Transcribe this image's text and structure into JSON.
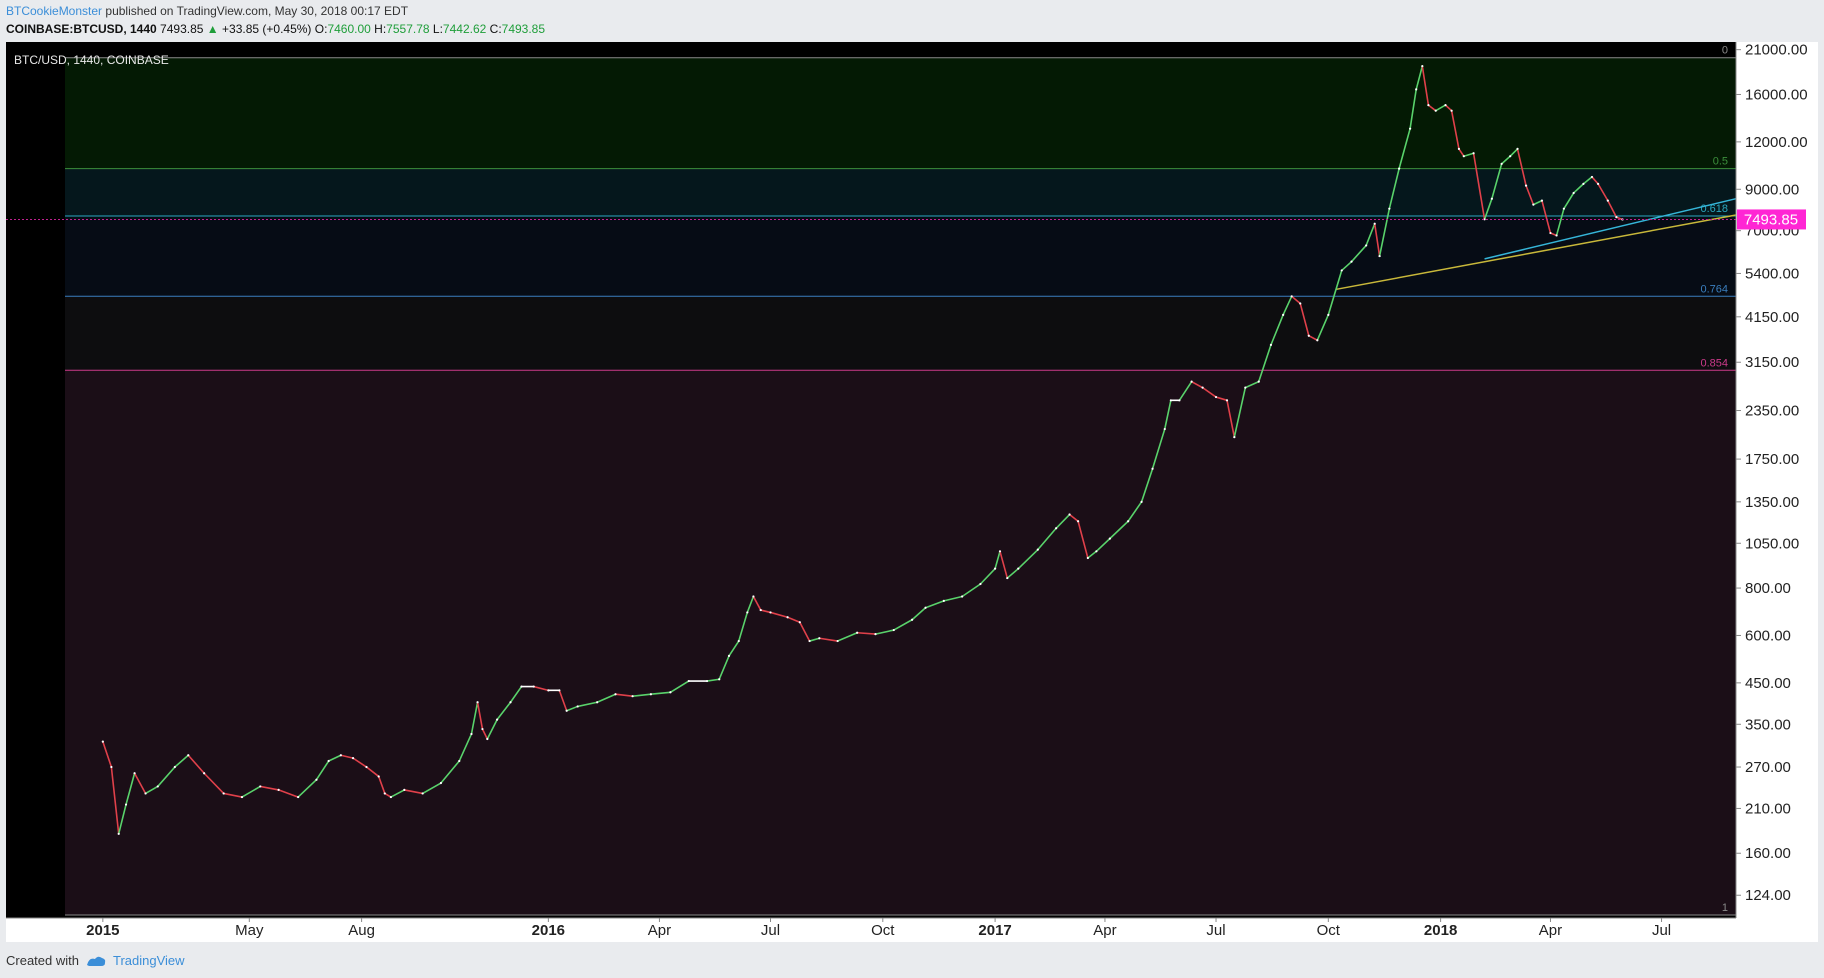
{
  "header": {
    "author": "BTCookieMonster",
    "published": "published on TradingView.com, May 30, 2018 00:17 EDT",
    "symbol": "COINBASE:BTCUSD, 1440",
    "last": "7493.85",
    "change": "+33.85 (+0.45%)",
    "open_label": "O:",
    "open": "7460.00",
    "high_label": "H:",
    "high": "7557.78",
    "low_label": "L:",
    "low": "7442.62",
    "close_label": "C:",
    "close": "7493.85"
  },
  "footer": {
    "created_with": "Created with",
    "brand": "TradingView"
  },
  "colors": {
    "chart_bg": "#000000",
    "up": "#59d26b",
    "down": "#e0404a",
    "neutral": "#ffffff",
    "fib_green": "#3c8f3c",
    "fib_cyan": "#2aa8c0",
    "fib_blue": "#3a7fbf",
    "fib_magenta": "#cc3a8a",
    "trend_cyan": "#35b5d8",
    "trend_yellow": "#c8b83a",
    "price_tag": "#ff26d4"
  },
  "chart_data": {
    "type": "line",
    "title": "BTC/USD, 1440, COINBASE",
    "scale": "log",
    "ylim": [
      108,
      22000
    ],
    "xlim": [
      "2014-12-01",
      "2018-08-31"
    ],
    "y_ticks": [
      21000,
      16000,
      12000,
      9000,
      7000,
      5400,
      4150,
      3150,
      2350,
      1750,
      1350,
      1050,
      800,
      600,
      450,
      350,
      270,
      210,
      160,
      124
    ],
    "y_tick_labels": [
      "21000.00",
      "16000.00",
      "12000.00",
      "9000.00",
      "7000.00",
      "5400.00",
      "4150.00",
      "3150.00",
      "2350.00",
      "1750.00",
      "1350.00",
      "1050.00",
      "800.00",
      "600.00",
      "450.00",
      "350.00",
      "270.00",
      "210.00",
      "160.00",
      "124.00"
    ],
    "x_ticks": [
      {
        "date": "2015-01-01",
        "label": "2015",
        "bold": true
      },
      {
        "date": "2015-05-01",
        "label": "May",
        "bold": false
      },
      {
        "date": "2015-08-01",
        "label": "Aug",
        "bold": false
      },
      {
        "date": "2016-01-01",
        "label": "2016",
        "bold": true
      },
      {
        "date": "2016-04-01",
        "label": "Apr",
        "bold": false
      },
      {
        "date": "2016-07-01",
        "label": "Jul",
        "bold": false
      },
      {
        "date": "2016-10-01",
        "label": "Oct",
        "bold": false
      },
      {
        "date": "2017-01-01",
        "label": "2017",
        "bold": true
      },
      {
        "date": "2017-04-01",
        "label": "Apr",
        "bold": false
      },
      {
        "date": "2017-07-01",
        "label": "Jul",
        "bold": false
      },
      {
        "date": "2017-10-01",
        "label": "Oct",
        "bold": false
      },
      {
        "date": "2018-01-01",
        "label": "2018",
        "bold": true
      },
      {
        "date": "2018-04-01",
        "label": "Apr",
        "bold": false
      },
      {
        "date": "2018-07-01",
        "label": "Jul",
        "bold": false
      }
    ],
    "fib_levels": [
      {
        "label": "0",
        "price": 20000,
        "color": "#8a8a8a"
      },
      {
        "label": "0.5",
        "price": 10200,
        "color": "#3c8f3c"
      },
      {
        "label": "0.618",
        "price": 7650,
        "color": "#2aa8c0"
      },
      {
        "label": "0.764",
        "price": 4700,
        "color": "#3a7fbf"
      },
      {
        "label": "0.854",
        "price": 3000,
        "color": "#cc3a8a"
      },
      {
        "label": "1",
        "price": 110,
        "color": "#8a8a8a"
      }
    ],
    "fib_zones": [
      {
        "from": 20000,
        "to": 10200,
        "color": "#041a04"
      },
      {
        "from": 10200,
        "to": 7650,
        "color": "#05171c"
      },
      {
        "from": 7650,
        "to": 4700,
        "color": "#060c15"
      },
      {
        "from": 4700,
        "to": 3000,
        "color": "#0d0d0f"
      },
      {
        "from": 3000,
        "to": 110,
        "color": "#1b0e17"
      }
    ],
    "trendlines": [
      {
        "name": "cyan",
        "from": [
          "2018-02-06",
          5900
        ],
        "to": [
          "2018-08-31",
          8500
        ],
        "color": "#35b5d8"
      },
      {
        "name": "yellow",
        "from": [
          "2017-10-07",
          4900
        ],
        "to": [
          "2018-08-31",
          7700
        ],
        "color": "#c8b83a"
      }
    ],
    "series": [
      {
        "x": [
          "2015-01-01",
          "2015-01-08",
          "2015-01-14",
          "2015-01-20",
          "2015-01-27",
          "2015-02-05",
          "2015-02-15",
          "2015-03-01",
          "2015-03-12",
          "2015-03-25",
          "2015-04-10",
          "2015-04-25",
          "2015-05-10",
          "2015-05-25",
          "2015-06-10",
          "2015-06-25",
          "2015-07-05",
          "2015-07-15",
          "2015-07-25",
          "2015-08-05",
          "2015-08-15",
          "2015-08-20",
          "2015-08-25",
          "2015-09-05",
          "2015-09-20",
          "2015-10-05",
          "2015-10-20",
          "2015-10-30",
          "2015-11-04",
          "2015-11-08",
          "2015-11-12",
          "2015-11-20",
          "2015-12-01",
          "2015-12-10",
          "2015-12-20",
          "2016-01-01",
          "2016-01-10",
          "2016-01-16",
          "2016-01-25",
          "2016-02-10",
          "2016-02-25",
          "2016-03-10",
          "2016-03-25",
          "2016-04-10",
          "2016-04-25",
          "2016-05-10",
          "2016-05-20",
          "2016-05-28",
          "2016-06-05",
          "2016-06-12",
          "2016-06-17",
          "2016-06-23",
          "2016-07-01",
          "2016-07-15",
          "2016-07-25",
          "2016-08-02",
          "2016-08-10",
          "2016-08-25",
          "2016-09-10",
          "2016-09-25",
          "2016-10-10",
          "2016-10-25",
          "2016-11-05",
          "2016-11-20",
          "2016-12-05",
          "2016-12-20",
          "2017-01-01",
          "2017-01-05",
          "2017-01-11",
          "2017-01-20",
          "2017-02-05",
          "2017-02-20",
          "2017-03-03",
          "2017-03-10",
          "2017-03-18",
          "2017-03-25",
          "2017-04-05",
          "2017-04-20",
          "2017-05-01",
          "2017-05-10",
          "2017-05-20",
          "2017-05-25",
          "2017-06-01",
          "2017-06-11",
          "2017-06-20",
          "2017-07-01",
          "2017-07-10",
          "2017-07-16",
          "2017-07-25",
          "2017-08-05",
          "2017-08-15",
          "2017-08-25",
          "2017-09-01",
          "2017-09-08",
          "2017-09-15",
          "2017-09-22",
          "2017-10-01",
          "2017-10-12",
          "2017-10-20",
          "2017-11-01",
          "2017-11-08",
          "2017-11-12",
          "2017-11-20",
          "2017-11-28",
          "2017-12-07",
          "2017-12-12",
          "2017-12-17",
          "2017-12-22",
          "2017-12-28",
          "2018-01-05",
          "2018-01-10",
          "2018-01-16",
          "2018-01-20",
          "2018-01-28",
          "2018-02-06",
          "2018-02-12",
          "2018-02-20",
          "2018-02-27",
          "2018-03-05",
          "2018-03-12",
          "2018-03-18",
          "2018-03-25",
          "2018-04-01",
          "2018-04-06",
          "2018-04-12",
          "2018-04-20",
          "2018-04-28",
          "2018-05-05",
          "2018-05-10",
          "2018-05-18",
          "2018-05-25",
          "2018-05-30"
        ],
        "values": [
          315,
          270,
          180,
          215,
          260,
          230,
          240,
          270,
          290,
          260,
          230,
          225,
          240,
          235,
          225,
          250,
          280,
          290,
          285,
          270,
          255,
          230,
          225,
          235,
          230,
          245,
          280,
          330,
          400,
          340,
          320,
          360,
          400,
          440,
          440,
          430,
          430,
          380,
          390,
          400,
          420,
          415,
          420,
          425,
          455,
          455,
          460,
          530,
          580,
          690,
          760,
          700,
          690,
          670,
          650,
          580,
          590,
          580,
          610,
          605,
          620,
          660,
          710,
          740,
          760,
          820,
          900,
          1000,
          850,
          900,
          1010,
          1150,
          1250,
          1200,
          960,
          1000,
          1080,
          1200,
          1350,
          1650,
          2100,
          2500,
          2500,
          2800,
          2700,
          2550,
          2500,
          2000,
          2700,
          2800,
          3500,
          4200,
          4700,
          4500,
          3700,
          3600,
          4200,
          5500,
          5800,
          6400,
          7300,
          6000,
          8000,
          10200,
          13000,
          16500,
          19000,
          15000,
          14500,
          15000,
          14500,
          11500,
          11000,
          11200,
          7500,
          8500,
          10500,
          11000,
          11500,
          9200,
          8200,
          8400,
          6900,
          6800,
          8000,
          8800,
          9300,
          9700,
          9300,
          8400,
          7600,
          7494
        ]
      }
    ]
  }
}
